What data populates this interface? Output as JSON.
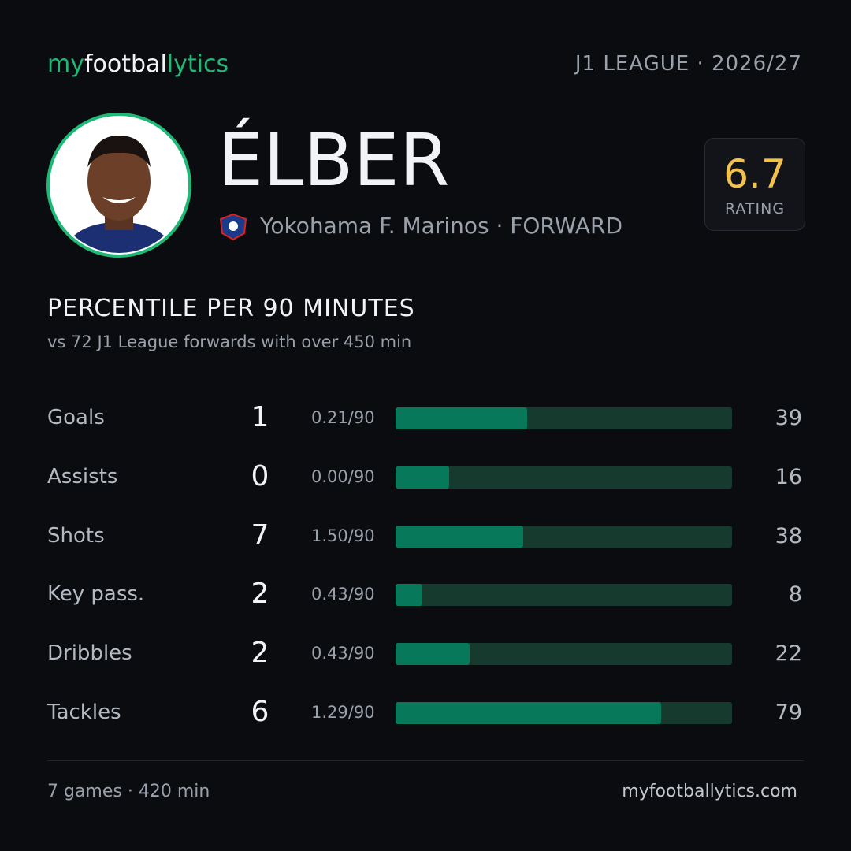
{
  "header": {
    "brand": [
      "my",
      "footbal",
      "lytics"
    ],
    "league": "J1 LEAGUE · 2026/27"
  },
  "player": {
    "name": "ÉLBER",
    "club": "Yokohama  F. Marinos · FORWARD",
    "rating": 6.7,
    "rating_label": "RATING"
  },
  "section": {
    "title": "PERCENTILE  PER 90 MINUTES",
    "subtitle": "vs 72 J1 League forwards with over 450 min"
  },
  "stats": {
    "xlim": [
      0,
      100
    ],
    "rows": [
      {
        "label": "Goals",
        "total": 1,
        "per90": "0.21/90",
        "percentile": 39
      },
      {
        "label": "Assists",
        "total": 0,
        "per90": "0.00/90",
        "percentile": 16
      },
      {
        "label": "Shots",
        "total": 7,
        "per90": "1.50/90",
        "percentile": 38
      },
      {
        "label": "Key pass.",
        "total": 2,
        "per90": "0.43/90",
        "percentile": 8
      },
      {
        "label": "Dribbles",
        "total": 2,
        "per90": "0.43/90",
        "percentile": 22
      },
      {
        "label": "Tackles",
        "total": 6,
        "per90": "1.29/90",
        "percentile": 79
      }
    ]
  },
  "footer": {
    "left": "7 games · 420 min",
    "right": "myfootballytics.com"
  }
}
